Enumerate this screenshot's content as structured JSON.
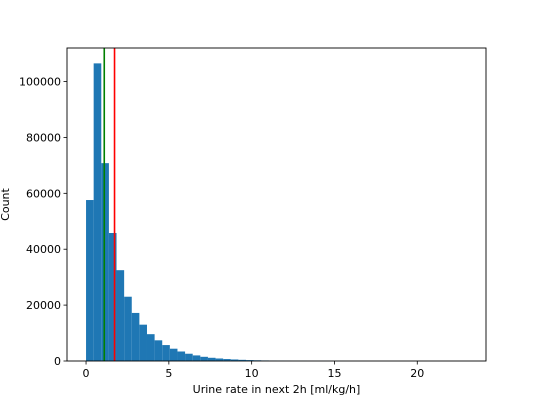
{
  "chart_data": {
    "type": "bar",
    "subtype": "histogram",
    "xlabel": "Urine rate in next 2h [ml/kg/h]",
    "ylabel": "Count",
    "xlim": [
      -1.15,
      24.15
    ],
    "ylim": [
      0,
      112000
    ],
    "xticks": [
      0,
      5,
      10,
      15,
      20
    ],
    "xtick_labels": [
      "0",
      "5",
      "10",
      "15",
      "20"
    ],
    "yticks": [
      0,
      20000,
      40000,
      60000,
      80000,
      100000
    ],
    "ytick_labels": [
      "0",
      "20000",
      "40000",
      "60000",
      "80000",
      "100000"
    ],
    "bin_width": 0.46,
    "bin_start": 0,
    "values": [
      57600,
      106500,
      70800,
      45800,
      32500,
      23000,
      17200,
      13000,
      9600,
      7400,
      5700,
      4400,
      3400,
      2600,
      2000,
      1500,
      1150,
      900,
      700,
      550,
      420,
      330,
      260,
      200,
      160,
      120,
      95,
      75,
      60,
      45,
      35,
      28,
      22,
      18,
      14,
      11,
      9,
      7,
      5,
      4,
      3,
      3,
      2,
      2,
      1,
      1,
      1,
      1,
      1,
      1
    ],
    "bar_color": "#1f77b4",
    "vlines": [
      {
        "x": 1.1,
        "color": "#008000"
      },
      {
        "x": 1.72,
        "color": "#ff0000"
      }
    ],
    "grid": false,
    "legend": "none"
  }
}
